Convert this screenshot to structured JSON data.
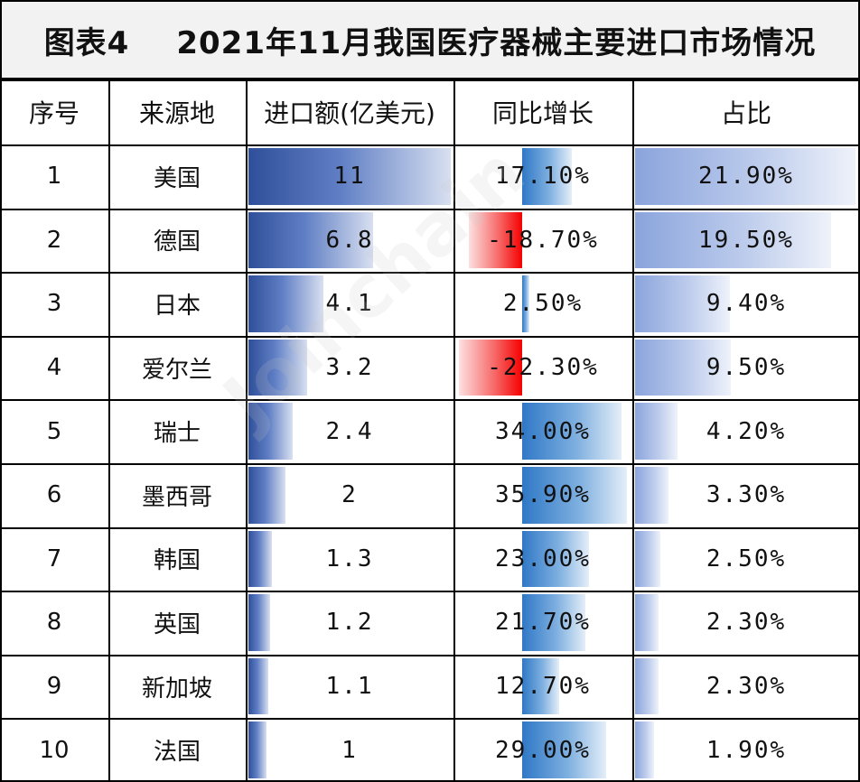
{
  "title": {
    "prefix": "图表4",
    "text": "2021年11月我国医疗器械主要进口市场情况"
  },
  "colors": {
    "amount_bar": "#2f4f9a",
    "growth_positive_bar": "#2f78c6",
    "growth_negative_bar": "#f50000",
    "share_bar": "#8aa4dc"
  },
  "watermark": "Joinchain",
  "chart_data": {
    "type": "table",
    "columns": [
      "序号",
      "来源地",
      "进口额(亿美元)",
      "同比增长",
      "占比"
    ],
    "rows": [
      {
        "rank": "1",
        "origin": "美国",
        "amount": 11,
        "amount_label": "11",
        "growth": 17.1,
        "growth_label": "17.10%",
        "share": 21.9,
        "share_label": "21.90%"
      },
      {
        "rank": "2",
        "origin": "德国",
        "amount": 6.8,
        "amount_label": "6.8",
        "growth": -18.7,
        "growth_label": "-18.70%",
        "share": 19.5,
        "share_label": "19.50%"
      },
      {
        "rank": "3",
        "origin": "日本",
        "amount": 4.1,
        "amount_label": "4.1",
        "growth": 2.5,
        "growth_label": "2.50%",
        "share": 9.4,
        "share_label": "9.40%"
      },
      {
        "rank": "4",
        "origin": "爱尔兰",
        "amount": 3.2,
        "amount_label": "3.2",
        "growth": -22.3,
        "growth_label": "-22.30%",
        "share": 9.5,
        "share_label": "9.50%"
      },
      {
        "rank": "5",
        "origin": "瑞士",
        "amount": 2.4,
        "amount_label": "2.4",
        "growth": 34.0,
        "growth_label": "34.00%",
        "share": 4.2,
        "share_label": "4.20%"
      },
      {
        "rank": "6",
        "origin": "墨西哥",
        "amount": 2,
        "amount_label": "2",
        "growth": 35.9,
        "growth_label": "35.90%",
        "share": 3.3,
        "share_label": "3.30%"
      },
      {
        "rank": "7",
        "origin": "韩国",
        "amount": 1.3,
        "amount_label": "1.3",
        "growth": 23.0,
        "growth_label": "23.00%",
        "share": 2.5,
        "share_label": "2.50%"
      },
      {
        "rank": "8",
        "origin": "英国",
        "amount": 1.2,
        "amount_label": "1.2",
        "growth": 21.7,
        "growth_label": "21.70%",
        "share": 2.3,
        "share_label": "2.30%"
      },
      {
        "rank": "9",
        "origin": "新加坡",
        "amount": 1.1,
        "amount_label": "1.1",
        "growth": 12.7,
        "growth_label": "12.70%",
        "share": 2.3,
        "share_label": "2.30%"
      },
      {
        "rank": "10",
        "origin": "法国",
        "amount": 1,
        "amount_label": "1",
        "growth": 29.0,
        "growth_label": "29.00%",
        "share": 1.9,
        "share_label": "1.90%"
      }
    ]
  }
}
